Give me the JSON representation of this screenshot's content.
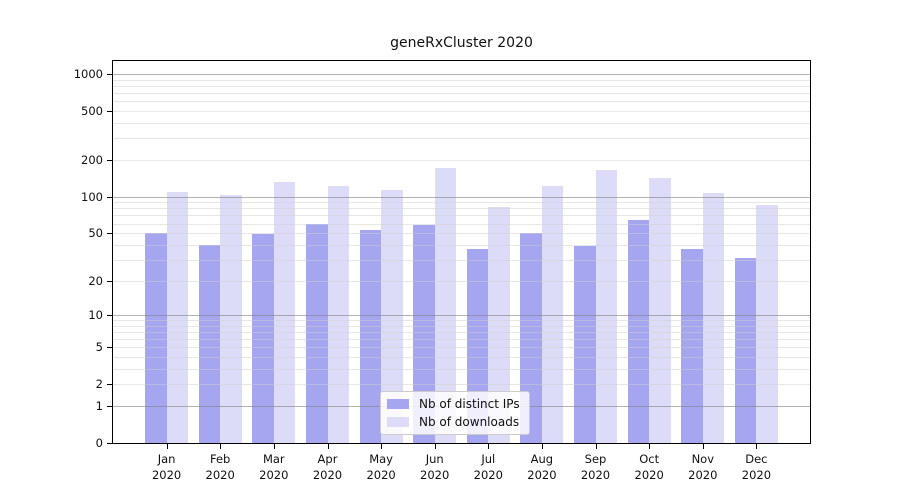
{
  "chart_data": {
    "type": "bar",
    "title": "geneRxCluster 2020",
    "categories": [
      "Jan",
      "Feb",
      "Mar",
      "Apr",
      "May",
      "Jun",
      "Jul",
      "Aug",
      "Sep",
      "Oct",
      "Nov",
      "Dec"
    ],
    "year_label": "2020",
    "series": [
      {
        "name": "Nb of distinct IPs",
        "color": "#a5a5f0",
        "values": [
          50,
          40,
          49,
          59,
          53,
          58,
          37,
          50,
          39,
          64,
          37,
          31
        ]
      },
      {
        "name": "Nb of downloads",
        "color": "#dcdcf8",
        "values": [
          110,
          104,
          133,
          123,
          114,
          172,
          83,
          123,
          165,
          143,
          108,
          86
        ]
      }
    ],
    "xlabel": "",
    "ylabel": "",
    "y_scale": "log10(1+y)",
    "ylim": [
      0,
      1280
    ],
    "y_ticks": [
      0,
      1,
      2,
      5,
      10,
      20,
      50,
      100,
      200,
      500,
      1000
    ],
    "grid": {
      "enabled": true,
      "major_values": [
        1,
        10,
        100,
        1000
      ],
      "minor_values": [
        2,
        3,
        4,
        5,
        6,
        7,
        8,
        9,
        20,
        30,
        40,
        50,
        60,
        70,
        80,
        90,
        200,
        300,
        400,
        500,
        600,
        700,
        800,
        900
      ],
      "major_color": "#b0b0b0",
      "minor_color": "#e8e8e8"
    },
    "legend_position": "lower center"
  }
}
